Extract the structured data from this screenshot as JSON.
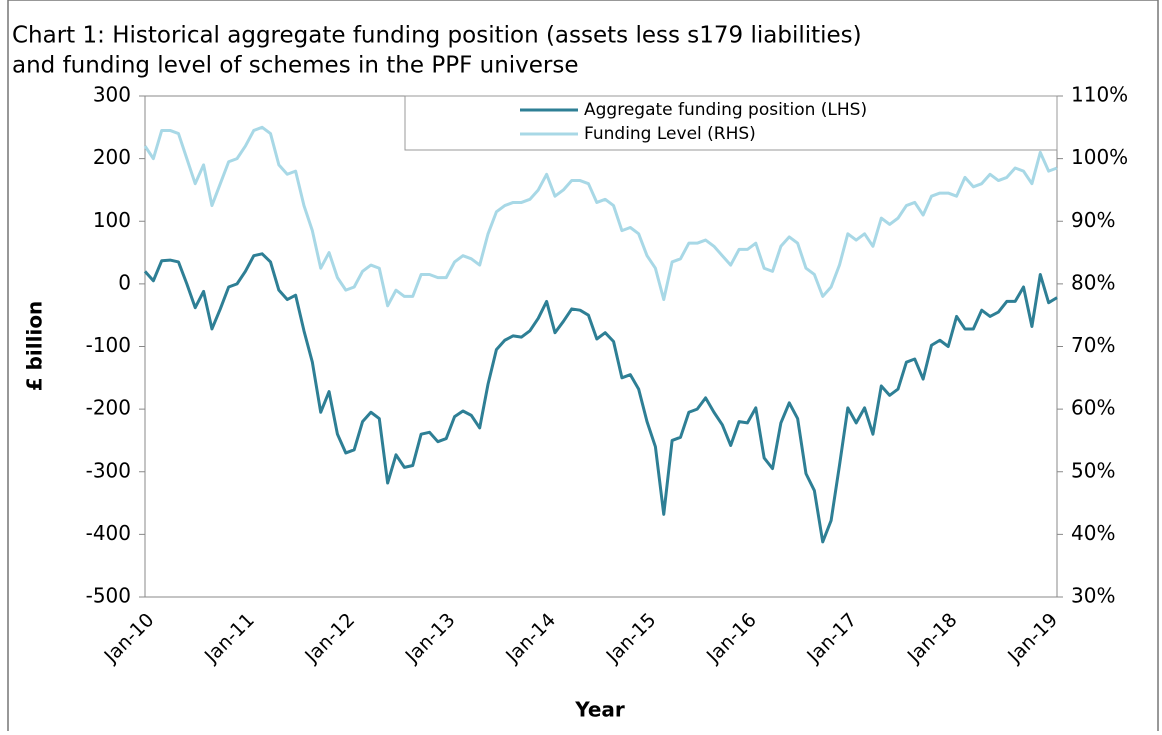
{
  "chart_data": {
    "type": "line",
    "title": "Chart 1: Historical aggregate funding position (assets less s179 liabilities)",
    "subtitle": "and funding level of schemes in the PPF universe",
    "x_label": "Year",
    "y_label": "£ billion",
    "categories": [
      "Jan-10",
      null,
      null,
      null,
      null,
      null,
      null,
      null,
      null,
      null,
      null,
      null,
      "Jan-11",
      null,
      null,
      null,
      null,
      null,
      null,
      null,
      null,
      null,
      null,
      null,
      "Jan-12",
      null,
      null,
      null,
      null,
      null,
      null,
      null,
      null,
      null,
      null,
      null,
      "Jan-13",
      null,
      null,
      null,
      null,
      null,
      null,
      null,
      null,
      null,
      null,
      null,
      "Jan-14",
      null,
      null,
      null,
      null,
      null,
      null,
      null,
      null,
      null,
      null,
      null,
      "Jan-15",
      null,
      null,
      null,
      null,
      null,
      null,
      null,
      null,
      null,
      null,
      null,
      "Jan-16",
      null,
      null,
      null,
      null,
      null,
      null,
      null,
      null,
      null,
      null,
      null,
      "Jan-17",
      null,
      null,
      null,
      null,
      null,
      null,
      null,
      null,
      null,
      null,
      null,
      "Jan-18",
      null,
      null,
      null,
      null,
      null,
      null,
      null,
      null,
      null,
      null,
      null,
      "Jan-19",
      null
    ],
    "ylim": [
      -500,
      300
    ],
    "yticks": [
      -500,
      -400,
      -300,
      -200,
      -100,
      0,
      100,
      200,
      300
    ],
    "y2lim": [
      30,
      110
    ],
    "y2ticks": [
      {
        "value": 30,
        "label": "30%"
      },
      {
        "value": 40,
        "label": "40%"
      },
      {
        "value": 50,
        "label": "50%"
      },
      {
        "value": 60,
        "label": "60%"
      },
      {
        "value": 70,
        "label": "70%"
      },
      {
        "value": 80,
        "label": "80%"
      },
      {
        "value": 90,
        "label": "90%"
      },
      {
        "value": 100,
        "label": "100%"
      },
      {
        "value": 110,
        "label": "110%"
      }
    ],
    "legend": "top-right",
    "series": [
      {
        "name": "Aggregate funding position (LHS)",
        "color": "#2e7f95",
        "values": [
          20,
          5,
          37,
          38,
          35,
          0,
          -38,
          -12,
          -72,
          -40,
          -5,
          0,
          20,
          45,
          48,
          35,
          -10,
          -25,
          -18,
          -75,
          -125,
          -205,
          -172,
          -240,
          -270,
          -265,
          -220,
          -205,
          -215,
          -318,
          -273,
          -293,
          -290,
          -240,
          -237,
          -252,
          -247,
          -212,
          -203,
          -210,
          -230,
          -160,
          -105,
          -90,
          -83,
          -85,
          -75,
          -55,
          -28,
          -78,
          -60,
          -40,
          -42,
          -50,
          -88,
          -78,
          -92,
          -150,
          -145,
          -168,
          -220,
          -260,
          -368,
          -250,
          -245,
          -205,
          -200,
          -182,
          -205,
          -225,
          -258,
          -220,
          -222,
          -198,
          -278,
          -295,
          -222,
          -190,
          -215,
          -303,
          -330,
          -412,
          -378,
          -290,
          -198,
          -222,
          -198,
          -240,
          -163,
          -178,
          -168,
          -125,
          -120,
          -152,
          -98,
          -90,
          -100,
          -52,
          -72,
          -72,
          -42,
          -52,
          -45,
          -28,
          -28,
          -5,
          -68,
          15,
          -30,
          -22
        ]
      },
      {
        "name": "Funding Level (RHS)",
        "color": "#a8d8e6",
        "axis": "y2",
        "values": [
          102,
          100,
          104.5,
          104.5,
          104,
          100,
          96,
          99,
          92.5,
          96,
          99.5,
          100,
          102,
          104.5,
          105,
          104,
          99,
          97.5,
          98,
          92.5,
          88.5,
          82.5,
          85,
          81,
          79,
          79.5,
          82,
          83,
          82.5,
          76.5,
          79,
          78,
          78,
          81.5,
          81.5,
          81,
          81,
          83.5,
          84.5,
          84,
          83,
          88,
          91.5,
          92.5,
          93,
          93,
          93.5,
          95,
          97.5,
          94,
          95,
          96.5,
          96.5,
          96,
          93,
          93.5,
          92.5,
          88.5,
          89,
          88,
          84.5,
          82.5,
          77.5,
          83.5,
          84,
          86.5,
          86.5,
          87,
          86,
          84.5,
          83,
          85.5,
          85.5,
          86.5,
          82.5,
          82,
          86,
          87.5,
          86.5,
          82.5,
          81.5,
          78,
          79.5,
          83,
          88,
          87,
          88,
          86,
          90.5,
          89.5,
          90.5,
          92.5,
          93,
          91,
          94,
          94.5,
          94.5,
          94,
          97,
          95.5,
          96,
          97.5,
          96.5,
          97,
          98.5,
          98,
          96,
          101,
          98,
          98.5
        ]
      }
    ]
  }
}
